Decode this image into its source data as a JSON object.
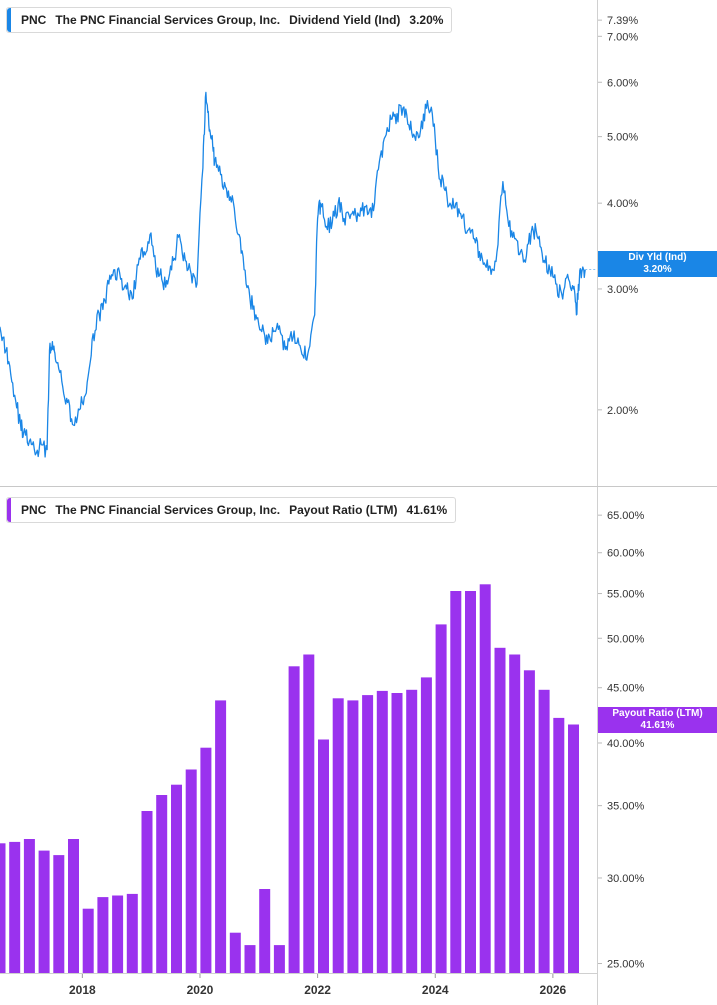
{
  "panels": [
    {
      "legend": {
        "ticker": "PNC",
        "company": "The PNC Financial Services Group, Inc.",
        "metric": "Dividend Yield (Ind)",
        "value": "3.20%"
      },
      "badge": {
        "label": "Div Yld (Ind)",
        "value": "3.20%"
      },
      "color": "#1a86e6"
    },
    {
      "legend": {
        "ticker": "PNC",
        "company": "The PNC Financial Services Group, Inc.",
        "metric": "Payout Ratio (LTM)",
        "value": "41.61%"
      },
      "badge": {
        "label": "Payout Ratio (LTM)",
        "value": "41.61%"
      },
      "color": "#9a32ee"
    }
  ],
  "x_axis": {
    "ticks": [
      "2018",
      "2020",
      "2022",
      "2024",
      "2026"
    ]
  },
  "chart_data": [
    {
      "type": "line",
      "title": "Dividend Yield (Ind)",
      "y_scale": "log",
      "ylim": [
        1.64,
        7.62
      ],
      "y_tick_labels": [
        "7.39%",
        "7.00%",
        "6.00%",
        "5.00%",
        "4.00%",
        "3.00%",
        "2.00%"
      ],
      "series": [
        {
          "name": "Dividend Yield (Ind)",
          "x": [
            2016.55,
            2016.65,
            2016.75,
            2016.85,
            2016.95,
            2017.0,
            2017.1,
            2017.2,
            2017.3,
            2017.4,
            2017.45,
            2017.5,
            2017.55,
            2017.65,
            2017.75,
            2017.85,
            2017.95,
            2018.05,
            2018.15,
            2018.25,
            2018.35,
            2018.45,
            2018.55,
            2018.65,
            2018.75,
            2018.85,
            2018.95,
            2019.05,
            2019.15,
            2019.25,
            2019.35,
            2019.45,
            2019.55,
            2019.65,
            2019.75,
            2019.85,
            2019.95,
            2020.05,
            2020.1,
            2020.15,
            2020.2,
            2020.25,
            2020.35,
            2020.45,
            2020.55,
            2020.65,
            2020.75,
            2020.85,
            2020.95,
            2021.05,
            2021.15,
            2021.25,
            2021.35,
            2021.45,
            2021.55,
            2021.65,
            2021.75,
            2021.85,
            2021.95,
            2022.0,
            2022.05,
            2022.15,
            2022.25,
            2022.35,
            2022.45,
            2022.55,
            2022.65,
            2022.75,
            2022.85,
            2022.95,
            2023.05,
            2023.15,
            2023.25,
            2023.35,
            2023.45,
            2023.55,
            2023.65,
            2023.75,
            2023.85,
            2023.95,
            2024.05,
            2024.15,
            2024.25,
            2024.35,
            2024.45,
            2024.55,
            2024.65,
            2024.75,
            2024.85,
            2024.95,
            2025.05,
            2025.15,
            2025.25,
            2025.35,
            2025.45,
            2025.55,
            2025.65,
            2025.75,
            2025.85,
            2025.95,
            2026.05,
            2026.15,
            2026.25,
            2026.35,
            2026.4,
            2026.45,
            2026.5,
            2026.55
          ],
          "y": [
            2.8,
            2.55,
            2.35,
            2.1,
            1.9,
            1.85,
            1.8,
            1.72,
            1.78,
            1.75,
            2.5,
            2.45,
            2.35,
            2.2,
            2.05,
            1.9,
            2.0,
            2.1,
            2.4,
            2.75,
            2.8,
            3.05,
            3.2,
            3.1,
            3.0,
            2.9,
            3.25,
            3.4,
            3.6,
            3.2,
            3.1,
            3.05,
            3.3,
            3.6,
            3.3,
            3.15,
            3.05,
            4.5,
            5.8,
            5.2,
            5.0,
            4.6,
            4.4,
            4.2,
            4.1,
            3.6,
            3.2,
            2.9,
            2.75,
            2.6,
            2.5,
            2.6,
            2.65,
            2.45,
            2.6,
            2.5,
            2.4,
            2.45,
            2.75,
            3.8,
            4.0,
            3.7,
            3.75,
            4.0,
            3.8,
            3.8,
            3.85,
            3.9,
            3.85,
            3.9,
            4.6,
            5.0,
            5.3,
            5.4,
            5.5,
            5.2,
            5.0,
            5.1,
            5.5,
            5.4,
            4.5,
            4.2,
            4.0,
            4.0,
            3.8,
            3.65,
            3.55,
            3.4,
            3.25,
            3.15,
            3.4,
            4.3,
            3.7,
            3.55,
            3.4,
            3.35,
            3.7,
            3.55,
            3.3,
            3.2,
            3.05,
            2.95,
            3.15,
            3.0,
            2.75,
            3.1,
            3.2,
            3.2
          ]
        }
      ]
    },
    {
      "type": "bar",
      "title": "Payout Ratio (LTM)",
      "y_scale": "log",
      "ylim": [
        24.5,
        66.0
      ],
      "y_tick_labels": [
        "65.00%",
        "60.00%",
        "55.00%",
        "50.00%",
        "45.00%",
        "40.00%",
        "35.00%",
        "30.00%",
        "25.00%"
      ],
      "series": [
        {
          "name": "Payout Ratio (LTM)",
          "x": [
            2016.6,
            2016.85,
            2017.1,
            2017.35,
            2017.6,
            2017.85,
            2018.1,
            2018.35,
            2018.6,
            2018.85,
            2019.1,
            2019.35,
            2019.6,
            2019.85,
            2020.1,
            2020.35,
            2020.6,
            2020.85,
            2021.1,
            2021.35,
            2021.6,
            2021.85,
            2022.1,
            2022.35,
            2022.6,
            2022.85,
            2023.1,
            2023.35,
            2023.6,
            2023.85,
            2024.1,
            2024.35,
            2024.6,
            2024.85,
            2025.1,
            2025.35,
            2025.6,
            2025.85,
            2026.1,
            2026.35
          ],
          "y": [
            32.3,
            32.4,
            32.6,
            31.8,
            31.5,
            32.6,
            28.1,
            28.8,
            28.9,
            29.0,
            34.6,
            35.8,
            36.6,
            37.8,
            39.6,
            43.8,
            26.7,
            26.0,
            29.3,
            26.0,
            47.1,
            48.3,
            40.3,
            44.0,
            43.8,
            44.3,
            44.7,
            44.5,
            44.8,
            46.0,
            51.5,
            55.3,
            55.3,
            56.1,
            49.0,
            48.3,
            46.7,
            44.8,
            42.2,
            41.61
          ]
        }
      ]
    }
  ]
}
